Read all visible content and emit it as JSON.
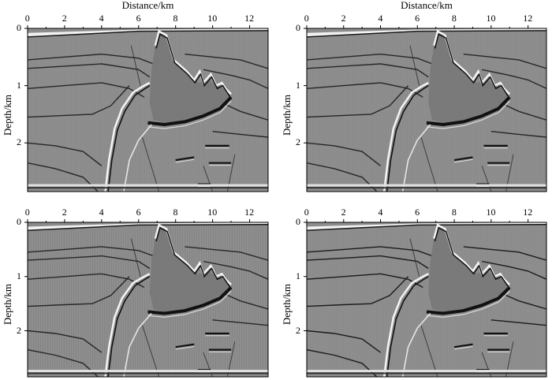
{
  "figure": {
    "panels": [
      {
        "id": "top-left",
        "xlabel": "Distance/km",
        "ylabel": "Depth/km",
        "show_xlabel": true
      },
      {
        "id": "top-right",
        "xlabel": "Distance/km",
        "ylabel": "Depth/km",
        "show_xlabel": true
      },
      {
        "id": "bottom-left",
        "xlabel": "",
        "ylabel": "Depth/km",
        "show_xlabel": false
      },
      {
        "id": "bottom-right",
        "xlabel": "",
        "ylabel": "Depth/km",
        "show_xlabel": false
      }
    ],
    "x_ticks": [
      "0",
      "2",
      "4",
      "6",
      "8",
      "10",
      "12"
    ],
    "y_ticks": [
      "0",
      "1",
      "2"
    ],
    "x_range": [
      0,
      13
    ],
    "y_range": [
      0,
      2.85
    ],
    "colors": {
      "background": "#8e8e8e",
      "dark": "#111111",
      "light": "#f4f4f4"
    }
  }
}
